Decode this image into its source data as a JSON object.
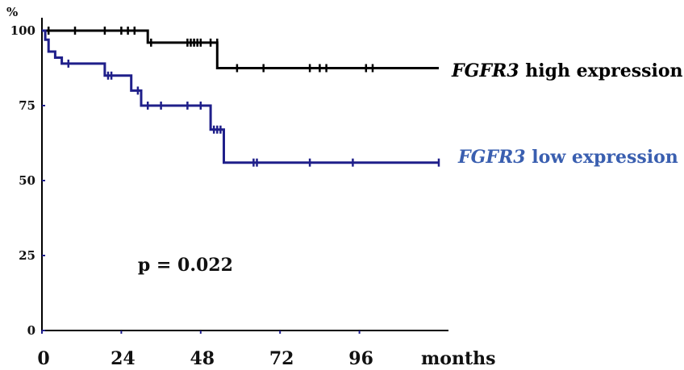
{
  "chart_data": {
    "type": "line",
    "title": "",
    "xlabel": "months",
    "ylabel": "%",
    "xlim": [
      0,
      120
    ],
    "ylim": [
      0,
      100
    ],
    "x_ticks": [
      0,
      24,
      48,
      72,
      96
    ],
    "y_ticks": [
      0,
      25,
      50,
      75,
      100
    ],
    "grid": false,
    "legend_placement": "right",
    "series": [
      {
        "name": "high expression",
        "gene": "FGFR3",
        "color": "#000000",
        "label_color": "#000000",
        "steps": [
          [
            0,
            100
          ],
          [
            32,
            100
          ],
          [
            32,
            96
          ],
          [
            53,
            96
          ],
          [
            53,
            87.5
          ],
          [
            120,
            87.5
          ]
        ],
        "censored": [
          [
            2,
            100
          ],
          [
            10,
            100
          ],
          [
            19,
            100
          ],
          [
            24,
            100
          ],
          [
            26,
            100
          ],
          [
            28,
            100
          ],
          [
            33,
            96
          ],
          [
            44,
            96
          ],
          [
            45,
            96
          ],
          [
            46,
            96
          ],
          [
            47,
            96
          ],
          [
            48,
            96
          ],
          [
            51,
            96
          ],
          [
            53,
            96
          ],
          [
            59,
            87.5
          ],
          [
            67,
            87.5
          ],
          [
            81,
            87.5
          ],
          [
            84,
            87.5
          ],
          [
            86,
            87.5
          ],
          [
            98,
            87.5
          ],
          [
            100,
            87.5
          ]
        ]
      },
      {
        "name": "low expression",
        "gene": "FGFR3",
        "color": "#1f1f8a",
        "label_color": "#3a5fb0",
        "steps": [
          [
            0,
            100
          ],
          [
            1,
            100
          ],
          [
            1,
            97
          ],
          [
            2,
            97
          ],
          [
            2,
            93
          ],
          [
            4,
            93
          ],
          [
            4,
            91
          ],
          [
            6,
            91
          ],
          [
            6,
            89
          ],
          [
            19,
            89
          ],
          [
            19,
            85
          ],
          [
            27,
            85
          ],
          [
            27,
            80
          ],
          [
            30,
            80
          ],
          [
            30,
            75
          ],
          [
            51,
            75
          ],
          [
            51,
            67
          ],
          [
            55,
            67
          ],
          [
            55,
            56
          ],
          [
            120,
            56
          ]
        ],
        "censored": [
          [
            8,
            89
          ],
          [
            20,
            85
          ],
          [
            21,
            85
          ],
          [
            29,
            80
          ],
          [
            32,
            75
          ],
          [
            36,
            75
          ],
          [
            44,
            75
          ],
          [
            48,
            75
          ],
          [
            52,
            67
          ],
          [
            53,
            67
          ],
          [
            54,
            67
          ],
          [
            64,
            56
          ],
          [
            65,
            56
          ],
          [
            81,
            56
          ],
          [
            94,
            56
          ],
          [
            120,
            56
          ]
        ]
      }
    ],
    "annotations": [
      {
        "text": "p = 0.022",
        "x": 29,
        "y": 22
      }
    ]
  }
}
